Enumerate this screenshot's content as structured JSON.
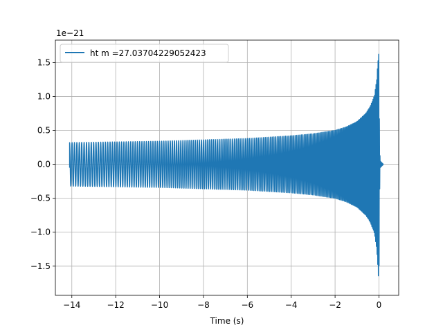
{
  "chart_data": {
    "type": "line",
    "title": "",
    "xlabel": "Time (s)",
    "ylabel": "",
    "y_offset_label": "1e−21",
    "xlim": [
      -14.75,
      0.9
    ],
    "ylim": [
      -1.93,
      1.83
    ],
    "x_ticks": [
      -14,
      -12,
      -10,
      -8,
      -6,
      -4,
      -2,
      0
    ],
    "x_tick_labels": [
      "−14",
      "−12",
      "−10",
      "−8",
      "−6",
      "−4",
      "−2",
      "0"
    ],
    "y_ticks": [
      -1.5,
      -1.0,
      -0.5,
      0.0,
      0.5,
      1.0,
      1.5
    ],
    "y_tick_labels": [
      "−1.5",
      "−1.0",
      "−0.5",
      "0.0",
      "0.5",
      "1.0",
      "1.5"
    ],
    "grid": true,
    "legend_position": "top-left",
    "series": [
      {
        "name": "ht m =27.03704229052423",
        "color": "#1f77b4",
        "x": [
          -14.1,
          -12,
          -10,
          -8,
          -6,
          -4,
          -3,
          -2,
          -1.5,
          -1,
          -0.6,
          -0.4,
          -0.2,
          -0.1,
          -0.05,
          0.0,
          0.02,
          0.05,
          0.2
        ],
        "envelope_upper": [
          0.32,
          0.33,
          0.34,
          0.36,
          0.38,
          0.42,
          0.45,
          0.5,
          0.55,
          0.63,
          0.75,
          0.85,
          1.02,
          1.25,
          1.5,
          1.65,
          0.6,
          0.05,
          0.0
        ],
        "envelope_lower": [
          -0.32,
          -0.33,
          -0.34,
          -0.36,
          -0.38,
          -0.42,
          -0.45,
          -0.5,
          -0.55,
          -0.63,
          -0.75,
          -0.85,
          -1.02,
          -1.25,
          -1.5,
          -1.78,
          -0.6,
          -0.05,
          0.0
        ]
      }
    ]
  }
}
